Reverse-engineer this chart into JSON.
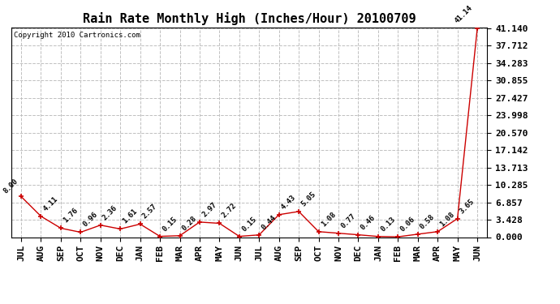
{
  "title": "Rain Rate Monthly High (Inches/Hour) 20100709",
  "copyright": "Copyright 2010 Cartronics.com",
  "x_labels": [
    "JUL",
    "AUG",
    "SEP",
    "OCT",
    "NOV",
    "DEC",
    "JAN",
    "FEB",
    "MAR",
    "APR",
    "MAY",
    "JUN",
    "JUL",
    "AUG",
    "SEP",
    "OCT",
    "NOV",
    "DEC",
    "JAN",
    "FEB",
    "MAR",
    "APR",
    "MAY",
    "JUN"
  ],
  "y_values": [
    8.0,
    4.11,
    1.76,
    0.96,
    2.36,
    1.61,
    2.57,
    0.15,
    0.28,
    2.97,
    2.72,
    0.15,
    0.44,
    4.43,
    5.05,
    1.08,
    0.77,
    0.46,
    0.13,
    0.06,
    0.58,
    1.08,
    3.65,
    41.14
  ],
  "value_labels": [
    "8.00",
    "4.11",
    "1.76",
    "0.96",
    "2.36",
    "1.61",
    "2.57",
    "0.15",
    "0.28",
    "2.97",
    "2.72",
    "0.15",
    "0.44",
    "4.43",
    "5.05",
    "1.08",
    "0.77",
    "0.46",
    "0.13",
    "0.06",
    "0.58",
    "1.08",
    "3.65",
    "41.14"
  ],
  "y_ticks": [
    0.0,
    3.428,
    6.857,
    10.285,
    13.713,
    17.142,
    20.57,
    23.998,
    27.427,
    30.855,
    34.283,
    37.712,
    41.14
  ],
  "y_tick_labels": [
    "0.000",
    "3.428",
    "6.857",
    "10.285",
    "13.713",
    "17.142",
    "20.570",
    "23.998",
    "27.427",
    "30.855",
    "34.283",
    "37.712",
    "41.140"
  ],
  "y_max": 41.14,
  "y_min": 0.0,
  "line_color": "#cc0000",
  "marker_color": "#cc0000",
  "bg_color": "#ffffff",
  "plot_bg_color": "#ffffff",
  "grid_color": "#c0c0c0",
  "title_fontsize": 11,
  "copyright_fontsize": 6.5,
  "tick_fontsize": 8,
  "label_fontsize": 6.5
}
